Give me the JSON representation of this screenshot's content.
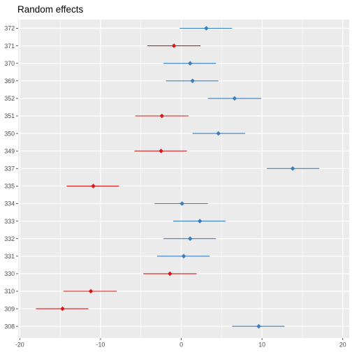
{
  "chart_data": {
    "type": "forest",
    "title": "Random effects",
    "xlabel": "",
    "ylabel": "",
    "xlim": [
      -20.2,
      20.8
    ],
    "x_ticks": [
      -20,
      -10,
      0,
      10,
      20
    ],
    "grid": true,
    "categories": [
      "372",
      "371",
      "370",
      "369",
      "352",
      "351",
      "350",
      "349",
      "337",
      "335",
      "334",
      "333",
      "332",
      "331",
      "330",
      "310",
      "309",
      "308"
    ],
    "estimates": [
      3.1,
      -0.9,
      1.1,
      1.4,
      6.6,
      -2.4,
      4.6,
      -2.5,
      13.8,
      -10.9,
      0.1,
      2.3,
      1.1,
      0.3,
      -1.4,
      -11.2,
      -14.7,
      9.6
    ],
    "lower": [
      -0.2,
      -4.2,
      -2.2,
      -1.9,
      3.3,
      -5.7,
      1.4,
      -5.8,
      10.6,
      -14.2,
      -3.3,
      -1.0,
      -2.2,
      -3.0,
      -4.7,
      -14.6,
      -18.0,
      6.3
    ],
    "upper": [
      6.3,
      2.4,
      4.3,
      4.6,
      9.9,
      0.9,
      7.9,
      0.7,
      17.1,
      -7.7,
      3.3,
      5.5,
      4.3,
      3.5,
      1.9,
      -8.0,
      -11.5,
      12.8
    ],
    "colors": {
      "positive": "#3a7ebd",
      "negative": "#d7191c",
      "panel": "#ebebeb",
      "grid_major": "#ffffff",
      "tick_text": "#4d4d4d",
      "tick_mark": "#333333"
    }
  }
}
